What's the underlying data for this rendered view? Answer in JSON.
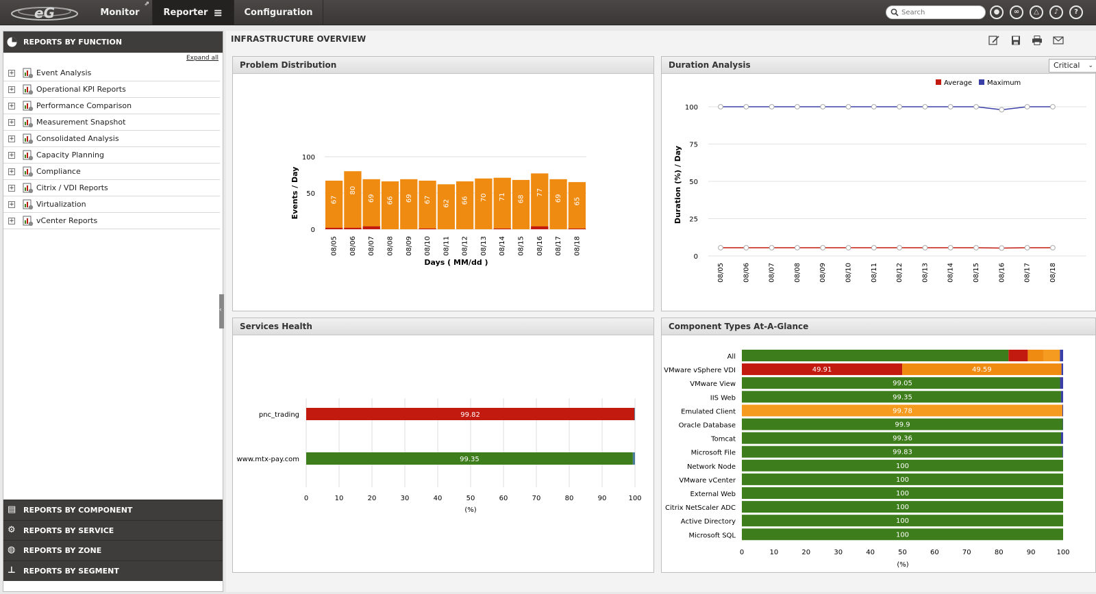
{
  "topnav": {
    "tabs": [
      "Monitor",
      "Reporter",
      "Configuration"
    ],
    "search_placeholder": "Search"
  },
  "sidebar": {
    "header": "REPORTS BY FUNCTION",
    "expand_all": "Expand all",
    "items": [
      {
        "label": "Event Analysis"
      },
      {
        "label": "Operational KPI Reports"
      },
      {
        "label": "Performance Comparison"
      },
      {
        "label": "Measurement Snapshot"
      },
      {
        "label": "Consolidated Analysis"
      },
      {
        "label": "Capacity Planning"
      },
      {
        "label": "Compliance"
      },
      {
        "label": "Citrix / VDI Reports"
      },
      {
        "label": "Virtualization"
      },
      {
        "label": "vCenter Reports"
      }
    ],
    "bottom_sections": [
      {
        "label": "REPORTS BY COMPONENT",
        "icon": "server-icon"
      },
      {
        "label": "REPORTS BY SERVICE",
        "icon": "gear-icon"
      },
      {
        "label": "REPORTS BY ZONE",
        "icon": "globe-icon"
      },
      {
        "label": "REPORTS BY SEGMENT",
        "icon": "hierarchy-icon"
      }
    ]
  },
  "main": {
    "title": "INFRASTRUCTURE OVERVIEW",
    "toolbar": [
      "edit-icon",
      "save-icon",
      "print-icon",
      "mail-icon"
    ]
  },
  "colors": {
    "orange": "#f08b12",
    "red": "#c21a0f",
    "green": "#3e7d1c",
    "blue": "#3b3fa8",
    "amber": "#f59b1f"
  },
  "panels": {
    "problem": "Problem Distribution",
    "duration": "Duration Analysis",
    "duration_filter": "Critical",
    "services": "Services Health",
    "components": "Component Types At-A-Glance"
  },
  "chart_data": [
    {
      "type": "bar",
      "title": "Problem Distribution",
      "xlabel": "Days ( MM/dd )",
      "ylabel": "Events / Day",
      "ylim": [
        0,
        100
      ],
      "yticks": [
        0,
        50,
        100
      ],
      "categories": [
        "08/05",
        "08/06",
        "08/07",
        "08/08",
        "08/09",
        "08/10",
        "08/11",
        "08/12",
        "08/13",
        "08/14",
        "08/15",
        "08/16",
        "08/17",
        "08/18"
      ],
      "values": [
        67,
        80,
        69,
        66,
        69,
        67,
        62,
        66,
        70,
        71,
        68,
        77,
        69,
        65
      ],
      "critical_values": [
        2,
        2,
        4,
        0,
        0,
        1,
        0,
        0,
        0,
        1,
        0,
        4,
        0,
        1
      ],
      "grid": true
    },
    {
      "type": "line",
      "title": "Duration Analysis",
      "xlabel": "Days ( MM/dd )",
      "ylabel": "Duration (%) / Day",
      "ylim": [
        0,
        100
      ],
      "yticks": [
        0,
        25,
        50,
        75,
        100
      ],
      "categories": [
        "08/05",
        "08/06",
        "08/07",
        "08/08",
        "08/09",
        "08/10",
        "08/11",
        "08/12",
        "08/13",
        "08/14",
        "08/15",
        "08/16",
        "08/17",
        "08/18"
      ],
      "series": [
        {
          "name": "Average",
          "values": [
            5.5,
            5.5,
            5.5,
            5.5,
            5.5,
            5.5,
            5.5,
            5.5,
            5.5,
            5.5,
            5.5,
            5.3,
            5.5,
            5.5
          ]
        },
        {
          "name": "Maximum",
          "values": [
            100,
            100,
            100,
            100,
            100,
            100,
            100,
            100,
            100,
            100,
            100,
            98,
            100,
            100
          ]
        }
      ],
      "legend": "top-right",
      "grid": true
    },
    {
      "type": "bar",
      "orientation": "horizontal",
      "title": "Services Health",
      "xlabel": "(%)",
      "xlim": [
        0,
        100
      ],
      "xticks": [
        0,
        10,
        20,
        30,
        40,
        50,
        60,
        70,
        80,
        90,
        100
      ],
      "categories": [
        "pnc_trading",
        "www.mtx-pay.com"
      ],
      "values": [
        99.82,
        99.35
      ],
      "bar_colors": [
        "red",
        "green"
      ]
    },
    {
      "type": "bar",
      "orientation": "horizontal",
      "stacked": true,
      "title": "Component Types At-A-Glance",
      "xlabel": "(%)",
      "xlim": [
        0,
        100
      ],
      "xticks": [
        0,
        10,
        20,
        30,
        40,
        50,
        60,
        70,
        80,
        90,
        100
      ],
      "categories": [
        "All",
        "VMware vSphere VDI",
        "VMware View",
        "IIS Web",
        "Emulated Client",
        "Oracle Database",
        "Tomcat",
        "Microsoft File",
        "Network Node",
        "VMware vCenter",
        "External Web",
        "Citrix NetScaler ADC",
        "Active Directory",
        "Microsoft SQL"
      ],
      "rows": [
        {
          "segments": [
            {
              "color": "green",
              "value": 83
            },
            {
              "color": "red",
              "value": 6
            },
            {
              "color": "orange",
              "value": 5
            },
            {
              "color": "amber",
              "value": 5
            },
            {
              "color": "blue",
              "value": 1
            }
          ],
          "label": ""
        },
        {
          "segments": [
            {
              "color": "red",
              "value": 49.91
            },
            {
              "color": "orange",
              "value": 49.59
            },
            {
              "color": "blue",
              "value": 0.5
            }
          ],
          "labels": [
            "49.91",
            "49.59"
          ]
        },
        {
          "segments": [
            {
              "color": "green",
              "value": 99.05
            },
            {
              "color": "blue",
              "value": 0.95
            }
          ],
          "label": "99.05"
        },
        {
          "segments": [
            {
              "color": "green",
              "value": 99.35
            },
            {
              "color": "blue",
              "value": 0.65
            }
          ],
          "label": "99.35"
        },
        {
          "segments": [
            {
              "color": "amber",
              "value": 99.78
            },
            {
              "color": "blue",
              "value": 0.22
            }
          ],
          "label": "99.78"
        },
        {
          "segments": [
            {
              "color": "green",
              "value": 99.9
            },
            {
              "color": "blue",
              "value": 0.1
            }
          ],
          "label": "99.9"
        },
        {
          "segments": [
            {
              "color": "green",
              "value": 99.36
            },
            {
              "color": "blue",
              "value": 0.64
            }
          ],
          "label": "99.36"
        },
        {
          "segments": [
            {
              "color": "green",
              "value": 99.83
            },
            {
              "color": "blue",
              "value": 0.17
            }
          ],
          "label": "99.83"
        },
        {
          "segments": [
            {
              "color": "green",
              "value": 100
            }
          ],
          "label": "100"
        },
        {
          "segments": [
            {
              "color": "green",
              "value": 100
            }
          ],
          "label": "100"
        },
        {
          "segments": [
            {
              "color": "green",
              "value": 100
            }
          ],
          "label": "100"
        },
        {
          "segments": [
            {
              "color": "green",
              "value": 100
            }
          ],
          "label": "100"
        },
        {
          "segments": [
            {
              "color": "green",
              "value": 100
            }
          ],
          "label": "100"
        },
        {
          "segments": [
            {
              "color": "green",
              "value": 100
            }
          ],
          "label": "100"
        }
      ]
    }
  ]
}
